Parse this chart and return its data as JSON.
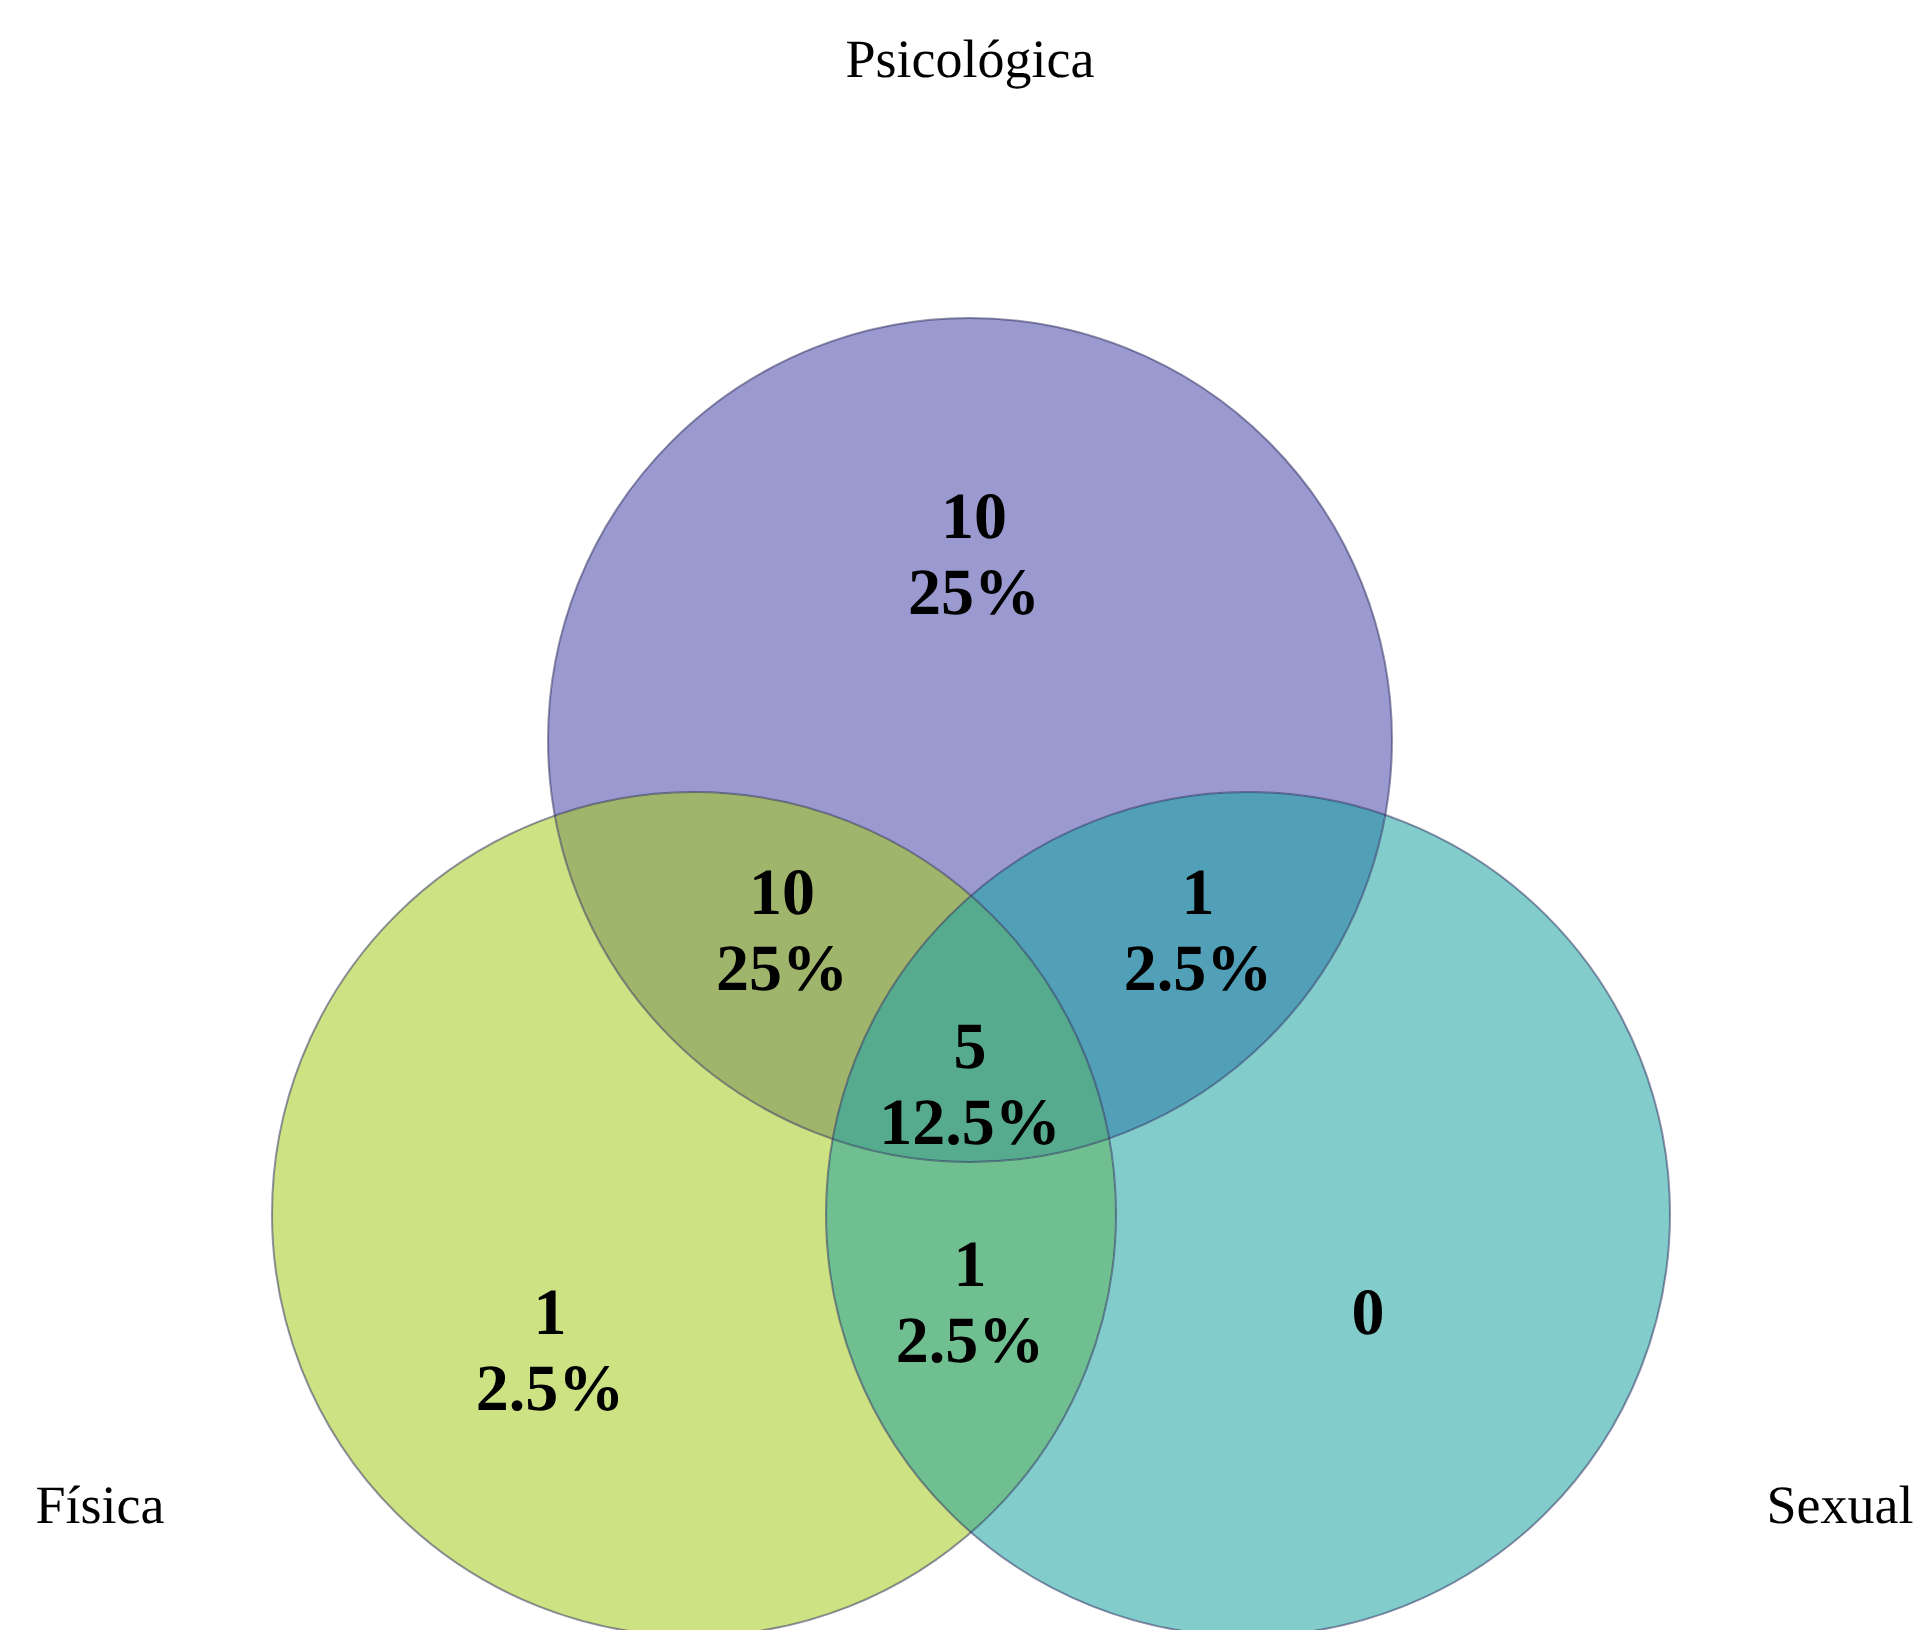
{
  "chart_data": {
    "type": "other",
    "annotations": [
      "Psicológica",
      "Física",
      "Sexual",
      "25%",
      "25%",
      "2.5%",
      "12.5%",
      "2.5%",
      "2.5%"
    ],
    "categories": [
      null,
      null,
      null,
      null,
      null,
      null,
      null
    ],
    "colors": [
      "#9a9ad0",
      "#a0b56c",
      "#52a0b8",
      "#56ab8f",
      "#cde283",
      "#6fbf90",
      "#83cccc"
    ],
    "values": [
      10,
      10,
      1,
      5,
      1,
      1,
      0
    ],
    "data_labels": true
  }
}
